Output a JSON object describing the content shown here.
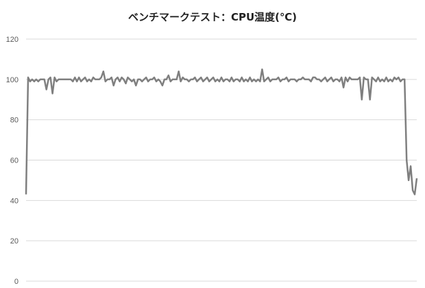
{
  "chart_data": {
    "type": "line",
    "title": "ベンチマークテスト：CPU温度(℃)",
    "xlabel": "",
    "ylabel": "",
    "ylim": [
      0,
      120
    ],
    "yticks": [
      0,
      20,
      40,
      60,
      80,
      100,
      120
    ],
    "grid": true,
    "legend": "none",
    "line_color": "#7f7f7f",
    "grid_color": "#d9d9d9",
    "series": [
      {
        "values": [
          43,
          101,
          99,
          100,
          99,
          100,
          99,
          100,
          100,
          100,
          95,
          100,
          101,
          93,
          101,
          99,
          100,
          100,
          100,
          100,
          100,
          100,
          100,
          99,
          101,
          99,
          101,
          99,
          100,
          101,
          99,
          100,
          99,
          101,
          100,
          100,
          100,
          101,
          104,
          99,
          100,
          100,
          101,
          97,
          100,
          101,
          99,
          101,
          100,
          98,
          101,
          100,
          99,
          100,
          97,
          100,
          100,
          99,
          100,
          101,
          99,
          100,
          100,
          101,
          99,
          100,
          99,
          97,
          100,
          100,
          102,
          99,
          100,
          100,
          100,
          104,
          99,
          101,
          100,
          100,
          99,
          100,
          100,
          101,
          99,
          100,
          101,
          99,
          100,
          101,
          99,
          100,
          101,
          99,
          100,
          99,
          101,
          99,
          100,
          100,
          99,
          101,
          99,
          100,
          100,
          99,
          101,
          99,
          100,
          99,
          101,
          99,
          100,
          99,
          100,
          99,
          105,
          99,
          100,
          101,
          99,
          100,
          100,
          100,
          101,
          99,
          100,
          100,
          101,
          99,
          100,
          100,
          100,
          99,
          100,
          100,
          101,
          100,
          100,
          100,
          99,
          101,
          101,
          100,
          100,
          99,
          100,
          101,
          99,
          100,
          101,
          99,
          100,
          100,
          99,
          101,
          96,
          101,
          99,
          101,
          100,
          100,
          100,
          100,
          101,
          90,
          101,
          100,
          100,
          90,
          101,
          100,
          99,
          101,
          99,
          100,
          99,
          101,
          99,
          100,
          99,
          101,
          100,
          101,
          99,
          100,
          100,
          60,
          50,
          57,
          45,
          43,
          51
        ]
      }
    ]
  }
}
